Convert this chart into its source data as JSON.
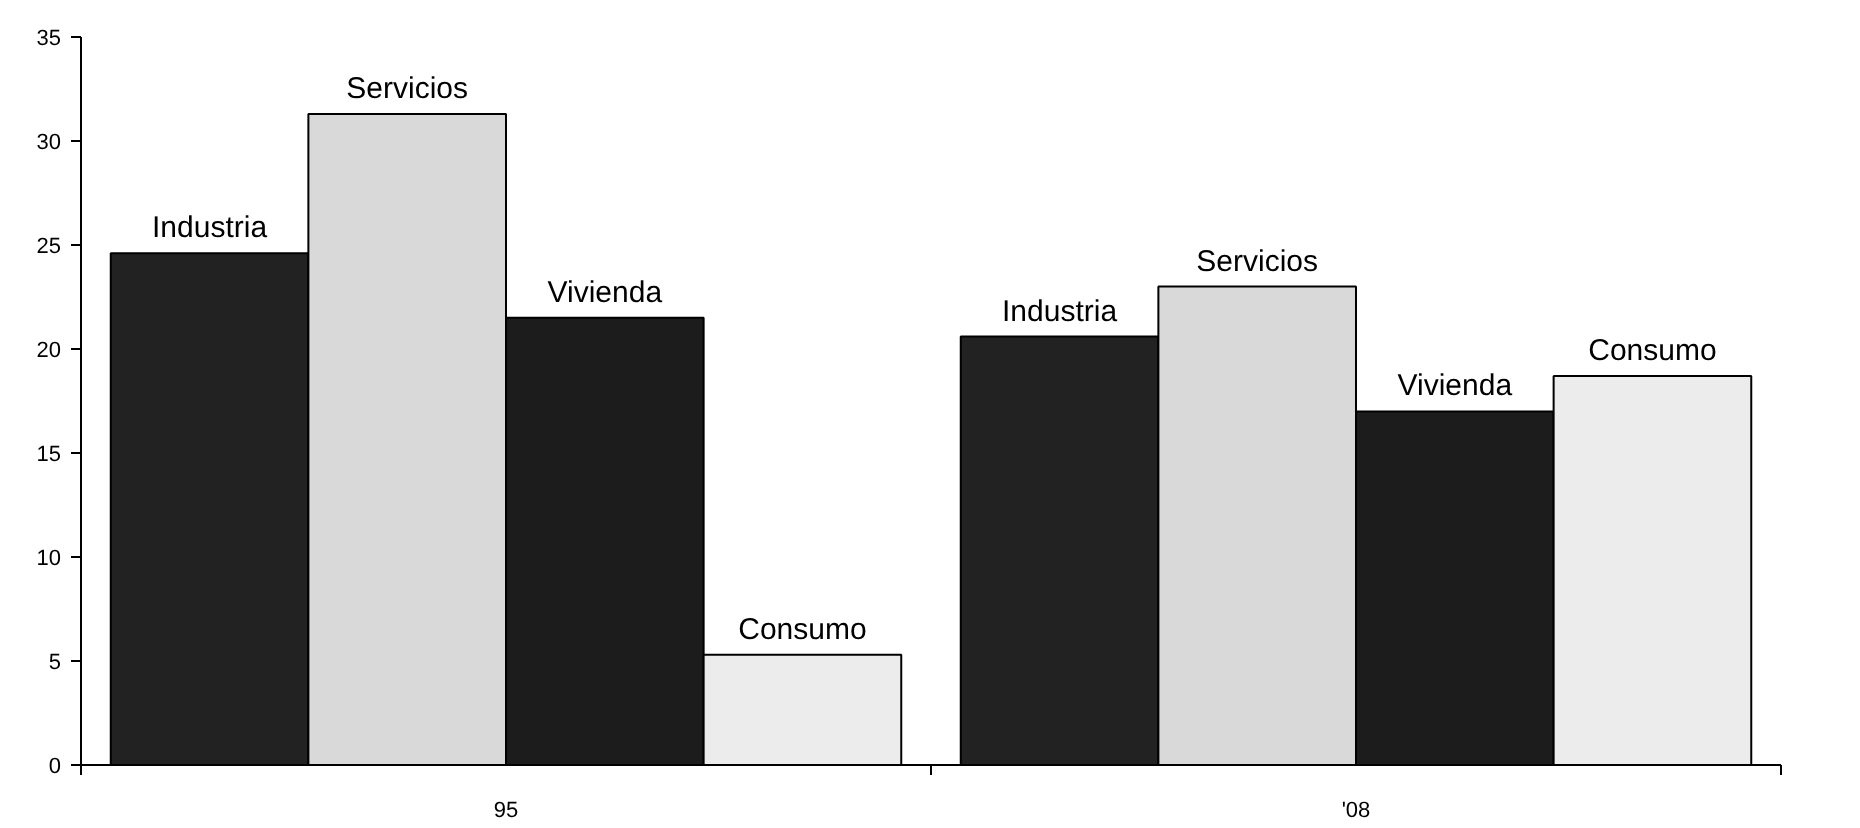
{
  "chart_data": {
    "type": "bar",
    "categories": [
      "95",
      "'08"
    ],
    "series": [
      {
        "name": "Industria",
        "color": "#222222",
        "values": [
          24.6,
          20.6
        ]
      },
      {
        "name": "Servicios",
        "color": "#d9d9d9",
        "values": [
          31.3,
          23.0
        ]
      },
      {
        "name": "Vivienda",
        "color": "#1c1c1c",
        "values": [
          21.5,
          17.0
        ]
      },
      {
        "name": "Consumo",
        "color": "#ececec",
        "values": [
          5.3,
          18.7
        ]
      }
    ],
    "ylim": [
      0,
      35
    ],
    "yticks": [
      0,
      5,
      10,
      15,
      20,
      25,
      30,
      35
    ],
    "grid": false,
    "legend": false
  }
}
